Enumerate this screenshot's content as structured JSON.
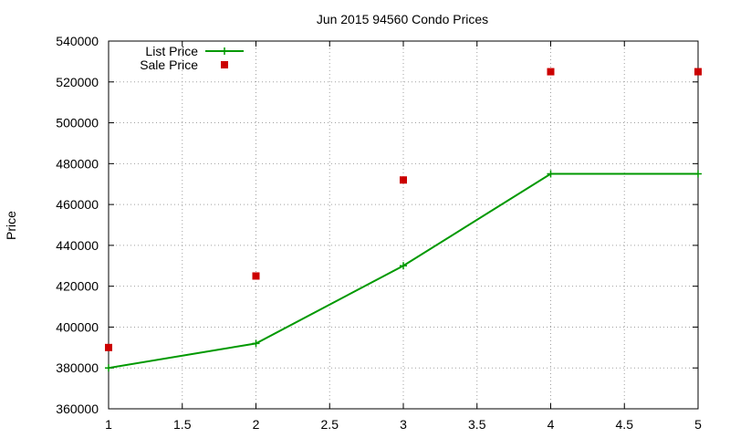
{
  "chart_data": {
    "type": "line",
    "title": "Jun 2015 94560 Condo Prices",
    "xlabel": "",
    "ylabel": "Price",
    "xlim": [
      1,
      5
    ],
    "ylim": [
      360000,
      540000
    ],
    "x_ticks": [
      1,
      1.5,
      2,
      2.5,
      3,
      3.5,
      4,
      4.5,
      5
    ],
    "y_ticks": [
      360000,
      380000,
      400000,
      420000,
      440000,
      460000,
      480000,
      500000,
      520000,
      540000
    ],
    "grid": true,
    "legend_position": "top-left",
    "series": [
      {
        "name": "List Price",
        "style": "line-with-plus-markers",
        "color": "#009900",
        "points": [
          {
            "x": 1,
            "y": 380000
          },
          {
            "x": 2,
            "y": 392000
          },
          {
            "x": 3,
            "y": 430000
          },
          {
            "x": 4,
            "y": 475000
          },
          {
            "x": 5,
            "y": 475000
          }
        ]
      },
      {
        "name": "Sale Price",
        "style": "square-markers",
        "color": "#cc0000",
        "points": [
          {
            "x": 1,
            "y": 390000
          },
          {
            "x": 2,
            "y": 425000
          },
          {
            "x": 3,
            "y": 472000
          },
          {
            "x": 4,
            "y": 525000
          },
          {
            "x": 5,
            "y": 525000
          }
        ]
      }
    ]
  }
}
